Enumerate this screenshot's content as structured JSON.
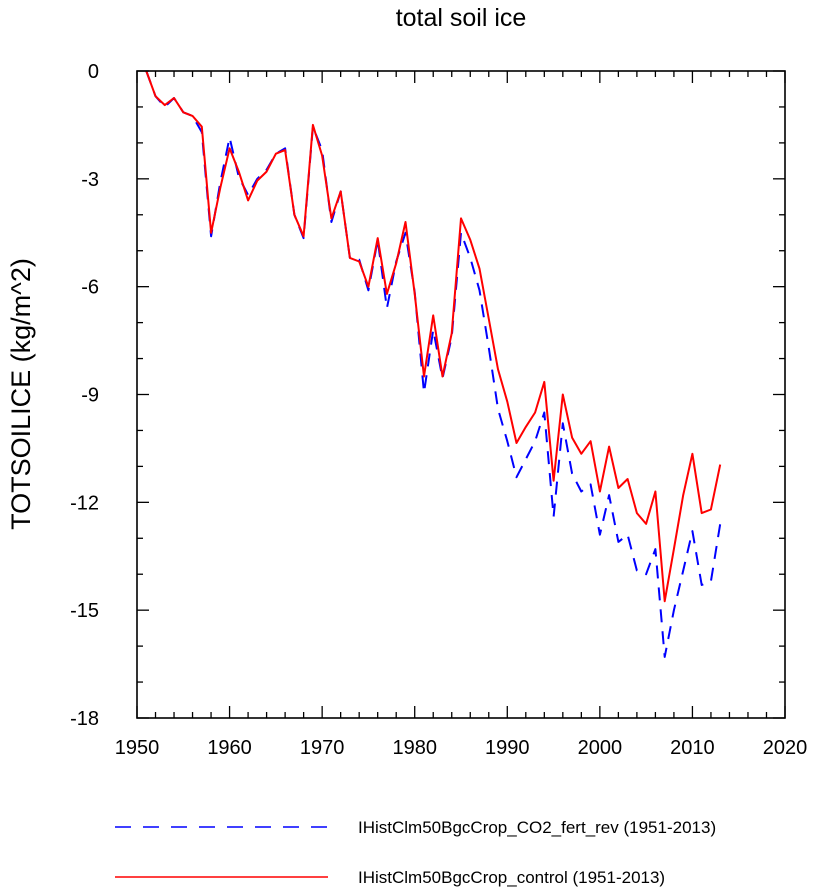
{
  "chart_data": {
    "type": "line",
    "title": "total soil ice",
    "ylabel": "TOTSOILICE  (kg/m^2)",
    "xlabel": "",
    "xlim": [
      1950,
      2020
    ],
    "ylim": [
      -18,
      0
    ],
    "xticks": [
      1950,
      1960,
      1970,
      1980,
      1990,
      2000,
      2010,
      2020
    ],
    "yticks": [
      0,
      -3,
      -6,
      -9,
      -12,
      -15,
      -18
    ],
    "x": [
      1951,
      1952,
      1953,
      1954,
      1955,
      1956,
      1957,
      1958,
      1959,
      1960,
      1961,
      1962,
      1963,
      1964,
      1965,
      1966,
      1967,
      1968,
      1969,
      1970,
      1971,
      1972,
      1973,
      1974,
      1975,
      1976,
      1977,
      1978,
      1979,
      1980,
      1981,
      1982,
      1983,
      1984,
      1985,
      1986,
      1987,
      1988,
      1989,
      1990,
      1991,
      1992,
      1993,
      1994,
      1995,
      1996,
      1997,
      1998,
      1999,
      2000,
      2001,
      2002,
      2003,
      2004,
      2005,
      2006,
      2007,
      2008,
      2009,
      2010,
      2011,
      2012,
      2013
    ],
    "series": [
      {
        "name": "IHistClm50BgcCrop_CO2_fert_rev (1951-2013)",
        "color": "#0000ff",
        "dash": true,
        "values": [
          0.0,
          -0.7,
          -1.0,
          -0.75,
          -1.15,
          -1.25,
          -1.7,
          -4.6,
          -3.1,
          -1.85,
          -2.95,
          -3.45,
          -3.0,
          -2.75,
          -2.3,
          -2.15,
          -4.0,
          -4.65,
          -1.55,
          -2.2,
          -4.2,
          -3.35,
          -5.2,
          -5.25,
          -6.1,
          -4.7,
          -6.6,
          -5.3,
          -4.5,
          -6.15,
          -8.95,
          -7.2,
          -8.55,
          -7.4,
          -4.5,
          -5.2,
          -6.1,
          -7.7,
          -9.4,
          -10.3,
          -11.3,
          -10.8,
          -10.3,
          -9.5,
          -12.4,
          -9.8,
          -11.2,
          -11.7,
          -11.5,
          -12.9,
          -11.8,
          -13.1,
          -12.9,
          -13.9,
          -14.0,
          -13.3,
          -16.3,
          -15.0,
          -13.9,
          -12.8,
          -14.3,
          -14.2,
          -12.6
        ]
      },
      {
        "name": "IHistClm50BgcCrop_control (1951-2013)",
        "color": "#ff0000",
        "dash": false,
        "values": [
          0.0,
          -0.7,
          -0.95,
          -0.75,
          -1.15,
          -1.25,
          -1.55,
          -4.5,
          -3.25,
          -2.15,
          -2.8,
          -3.6,
          -3.05,
          -2.8,
          -2.3,
          -2.2,
          -4.0,
          -4.6,
          -1.5,
          -2.35,
          -4.1,
          -3.35,
          -5.2,
          -5.3,
          -6.0,
          -4.65,
          -6.2,
          -5.35,
          -4.2,
          -6.2,
          -8.5,
          -6.8,
          -8.5,
          -7.3,
          -4.1,
          -4.7,
          -5.5,
          -6.9,
          -8.3,
          -9.2,
          -10.35,
          -9.9,
          -9.5,
          -8.65,
          -11.4,
          -9.0,
          -10.2,
          -10.65,
          -10.3,
          -11.7,
          -10.45,
          -11.6,
          -11.35,
          -12.3,
          -12.6,
          -11.7,
          -14.75,
          -13.3,
          -11.8,
          -10.65,
          -12.3,
          -12.2,
          -10.95
        ]
      }
    ],
    "legend": "bottom"
  }
}
